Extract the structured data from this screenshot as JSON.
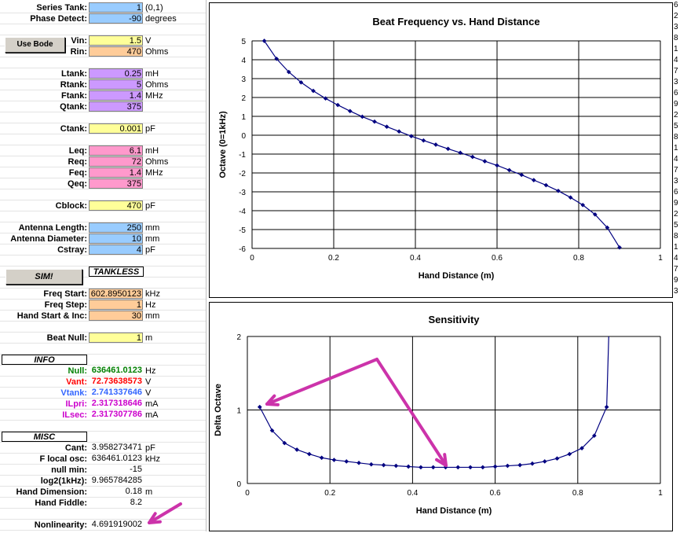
{
  "params_top": [
    {
      "label": "Series Tank:",
      "value": "1",
      "unit": "(0,1)",
      "color": "cyan"
    },
    {
      "label": "Phase Detect:",
      "value": "-90",
      "unit": "degrees",
      "color": "cyan"
    }
  ],
  "use_bode_button": "Use Bode",
  "source": [
    {
      "label": "Vin:",
      "value": "1.5",
      "unit": "V",
      "color": "yellow"
    },
    {
      "label": "Rin:",
      "value": "470",
      "unit": "Ohms",
      "color": "orange"
    }
  ],
  "tank": [
    {
      "label": "Ltank:",
      "value": "0.25",
      "unit": "mH",
      "color": "purple"
    },
    {
      "label": "Rtank:",
      "value": "5",
      "unit": "Ohms",
      "color": "purple"
    },
    {
      "label": "Ftank:",
      "value": "1.4",
      "unit": "MHz",
      "color": "purple"
    },
    {
      "label": "Qtank:",
      "value": "375",
      "unit": "",
      "color": "purple"
    }
  ],
  "ctank": {
    "label": "Ctank:",
    "value": "0.001",
    "unit": "pF",
    "color": "yellow"
  },
  "equiv": [
    {
      "label": "Leq:",
      "value": "6.1",
      "unit": "mH",
      "color": "pink"
    },
    {
      "label": "Req:",
      "value": "72",
      "unit": "Ohms",
      "color": "pink"
    },
    {
      "label": "Feq:",
      "value": "1.4",
      "unit": "MHz",
      "color": "pink"
    },
    {
      "label": "Qeq:",
      "value": "375",
      "unit": "",
      "color": "pink"
    }
  ],
  "cblock": {
    "label": "Cblock:",
    "value": "470",
    "unit": "pF",
    "color": "yellow"
  },
  "antenna": [
    {
      "label": "Antenna Length:",
      "value": "250",
      "unit": "mm",
      "color": "blue"
    },
    {
      "label": "Antenna Diameter:",
      "value": "10",
      "unit": "mm",
      "color": "blue"
    },
    {
      "label": "Cstray:",
      "value": "4",
      "unit": "pF",
      "color": "blue"
    }
  ],
  "sim_button": "SIM!",
  "tankless_header": "TANKLESS",
  "sim": [
    {
      "label": "Freq Start:",
      "value": "602.8950123",
      "unit": "kHz",
      "color": "orange"
    },
    {
      "label": "Freq Step:",
      "value": "1",
      "unit": "Hz",
      "color": "orange"
    },
    {
      "label": "Hand Start & Inc:",
      "value": "30",
      "unit": "mm",
      "color": "orange"
    }
  ],
  "beat_null": {
    "label": "Beat Null:",
    "value": "1",
    "unit": "m",
    "color": "yellow"
  },
  "info_header": "INFO",
  "info": [
    {
      "label": "Null:",
      "value": "636461.0123",
      "unit": "Hz",
      "color": "#008000"
    },
    {
      "label": "Vant:",
      "value": "72.73638573",
      "unit": "V",
      "color": "#ff0000"
    },
    {
      "label": "Vtank:",
      "value": "2.741337646",
      "unit": "V",
      "color": "#3366ff"
    },
    {
      "label": "ILpri:",
      "value": "2.317318646",
      "unit": "mA",
      "color": "#cc00cc"
    },
    {
      "label": "ILsec:",
      "value": "2.317307786",
      "unit": "mA",
      "color": "#cc00cc"
    }
  ],
  "misc_header": "MISC",
  "misc": [
    {
      "label": "Cant:",
      "value": "3.958273471",
      "unit": "pF"
    },
    {
      "label": "F local osc:",
      "value": "636461.0123",
      "unit": "kHz"
    },
    {
      "label": "null min:",
      "value": "-15",
      "unit": ""
    },
    {
      "label": "log2(1kHz):",
      "value": "9.965784285",
      "unit": ""
    },
    {
      "label": "Hand Dimension:",
      "value": "0.18",
      "unit": "m"
    },
    {
      "label": "Hand Fiddle:",
      "value": "8.2",
      "unit": ""
    }
  ],
  "nonlinearity": {
    "label": "Nonlinearity:",
    "value": "4.691919002"
  },
  "right_column_digits": [
    "6",
    "2",
    "3",
    "8",
    "1",
    "4",
    "7",
    "3",
    "6",
    "9",
    "2",
    "5",
    "8",
    "1",
    "4",
    "7",
    "3",
    "6",
    "9",
    "2",
    "5",
    "8",
    "1",
    "4",
    "7",
    "9",
    "3"
  ],
  "colors": {
    "cyan": "#99ccff",
    "yellow": "#ffff99",
    "orange": "#ffcc99",
    "purple": "#cc99ff",
    "pink": "#ff99cc",
    "blue": "#99ccff",
    "arrow": "#cc33aa",
    "series": "#000080"
  },
  "chart_data": [
    {
      "type": "line",
      "title": "Beat Frequency vs. Hand Distance",
      "xlabel": "Hand Distance (m)",
      "ylabel": "Octave (0=1kHz)",
      "xlim": [
        0,
        1
      ],
      "ylim": [
        -6,
        5
      ],
      "xticks": [
        "0",
        "0.2",
        "0.4",
        "0.6",
        "0.8",
        "1"
      ],
      "yticks": [
        "5",
        "4",
        "3",
        "2",
        "1",
        "0",
        "-1",
        "-2",
        "-3",
        "-4",
        "-5",
        "-6"
      ],
      "grid": true,
      "x": [
        0.03,
        0.06,
        0.09,
        0.12,
        0.15,
        0.18,
        0.21,
        0.24,
        0.27,
        0.3,
        0.33,
        0.36,
        0.39,
        0.42,
        0.45,
        0.48,
        0.51,
        0.54,
        0.57,
        0.6,
        0.63,
        0.66,
        0.69,
        0.72,
        0.75,
        0.78,
        0.81,
        0.84,
        0.87,
        0.9
      ],
      "y": [
        5.0,
        4.05,
        3.35,
        2.8,
        2.35,
        1.95,
        1.6,
        1.28,
        0.98,
        0.72,
        0.45,
        0.2,
        -0.05,
        -0.28,
        -0.5,
        -0.72,
        -0.93,
        -1.15,
        -1.38,
        -1.6,
        -1.85,
        -2.1,
        -2.38,
        -2.65,
        -2.95,
        -3.3,
        -3.7,
        -4.2,
        -4.9,
        -5.95
      ]
    },
    {
      "type": "line",
      "title": "Sensitivity",
      "xlabel": "Hand Distance (m)",
      "ylabel": "Delta Octave",
      "xlim": [
        0,
        1
      ],
      "ylim": [
        0,
        2
      ],
      "xticks": [
        "0",
        "0.2",
        "0.4",
        "0.6",
        "0.8",
        "1"
      ],
      "yticks": [
        "2",
        "1",
        "0"
      ],
      "grid": true,
      "x": [
        0.03,
        0.06,
        0.09,
        0.12,
        0.15,
        0.18,
        0.21,
        0.24,
        0.27,
        0.3,
        0.33,
        0.36,
        0.39,
        0.42,
        0.45,
        0.48,
        0.51,
        0.54,
        0.57,
        0.6,
        0.63,
        0.66,
        0.69,
        0.72,
        0.75,
        0.78,
        0.81,
        0.84,
        0.87
      ],
      "y": [
        1.04,
        0.72,
        0.55,
        0.46,
        0.4,
        0.35,
        0.32,
        0.3,
        0.28,
        0.26,
        0.25,
        0.24,
        0.23,
        0.22,
        0.22,
        0.22,
        0.22,
        0.22,
        0.22,
        0.23,
        0.24,
        0.25,
        0.27,
        0.3,
        0.34,
        0.4,
        0.48,
        0.65,
        1.04
      ],
      "tail": {
        "x": 0.875,
        "y": 2.0
      }
    }
  ]
}
